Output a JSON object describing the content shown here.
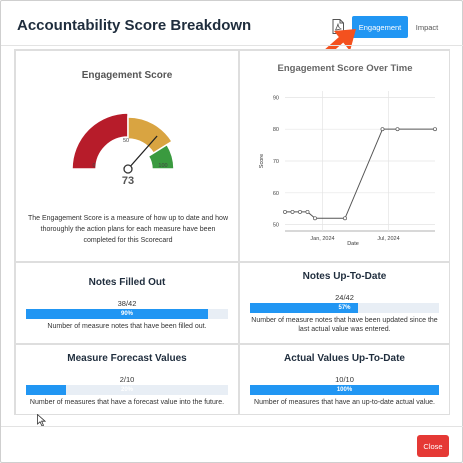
{
  "modal": {
    "title": "Accountability Score Breakdown",
    "tabs": {
      "engagement": "Engagement",
      "impact": "Impact"
    },
    "close_label": "Close"
  },
  "icons": {
    "pdf": "pdf-file-icon",
    "pointer": "orange-arrow-icon",
    "cursor": "mouse-cursor-icon"
  },
  "colors": {
    "primary": "#2196f3",
    "close": "#e53935",
    "gauge_red": "#b71c2a",
    "gauge_yellow": "#d9a441",
    "gauge_green": "#3a9a3f"
  },
  "gauge": {
    "title": "Engagement Score",
    "value": 73,
    "min_label": "0",
    "mid_label": "50",
    "max_label": "100",
    "description": "The Engagement Score is a measure of how up to date and how thoroughly the action plans for each measure have been completed for this Scorecard"
  },
  "chart_data": {
    "type": "line",
    "title": "Engagement Score Over Time",
    "xlabel": "Date",
    "ylabel": "Score",
    "ylim": [
      48,
      92
    ],
    "yticks": [
      50,
      60,
      70,
      80,
      90
    ],
    "xticks": [
      "Jan, 2024",
      "Jul, 2024"
    ],
    "grid": true,
    "series": [
      {
        "values": [
          [
            0,
            54
          ],
          [
            0.5,
            54
          ],
          [
            1,
            54
          ],
          [
            1.5,
            54
          ],
          [
            2,
            52
          ],
          [
            4,
            52
          ],
          [
            6.5,
            80
          ],
          [
            7.5,
            80
          ],
          [
            10,
            80
          ]
        ]
      }
    ]
  },
  "stats": [
    {
      "title": "Notes Filled Out",
      "count": "38/42",
      "percent_label": "90%",
      "fraction": 0.9,
      "description": "Number of measure notes that have been filled out."
    },
    {
      "title": "Notes Up-To-Date",
      "count": "24/42",
      "percent_label": "57%",
      "fraction": 0.57,
      "description": "Number of measure notes that have been updated since the last actual value was entered."
    },
    {
      "title": "Measure Forecast Values",
      "count": "2/10",
      "percent_label": "20%",
      "fraction": 0.2,
      "description": "Number of measures that have a forecast value into the future."
    },
    {
      "title": "Actual Values Up-To-Date",
      "count": "10/10",
      "percent_label": "100%",
      "fraction": 1.0,
      "description": "Number of measures that have an up-to-date actual value."
    }
  ]
}
